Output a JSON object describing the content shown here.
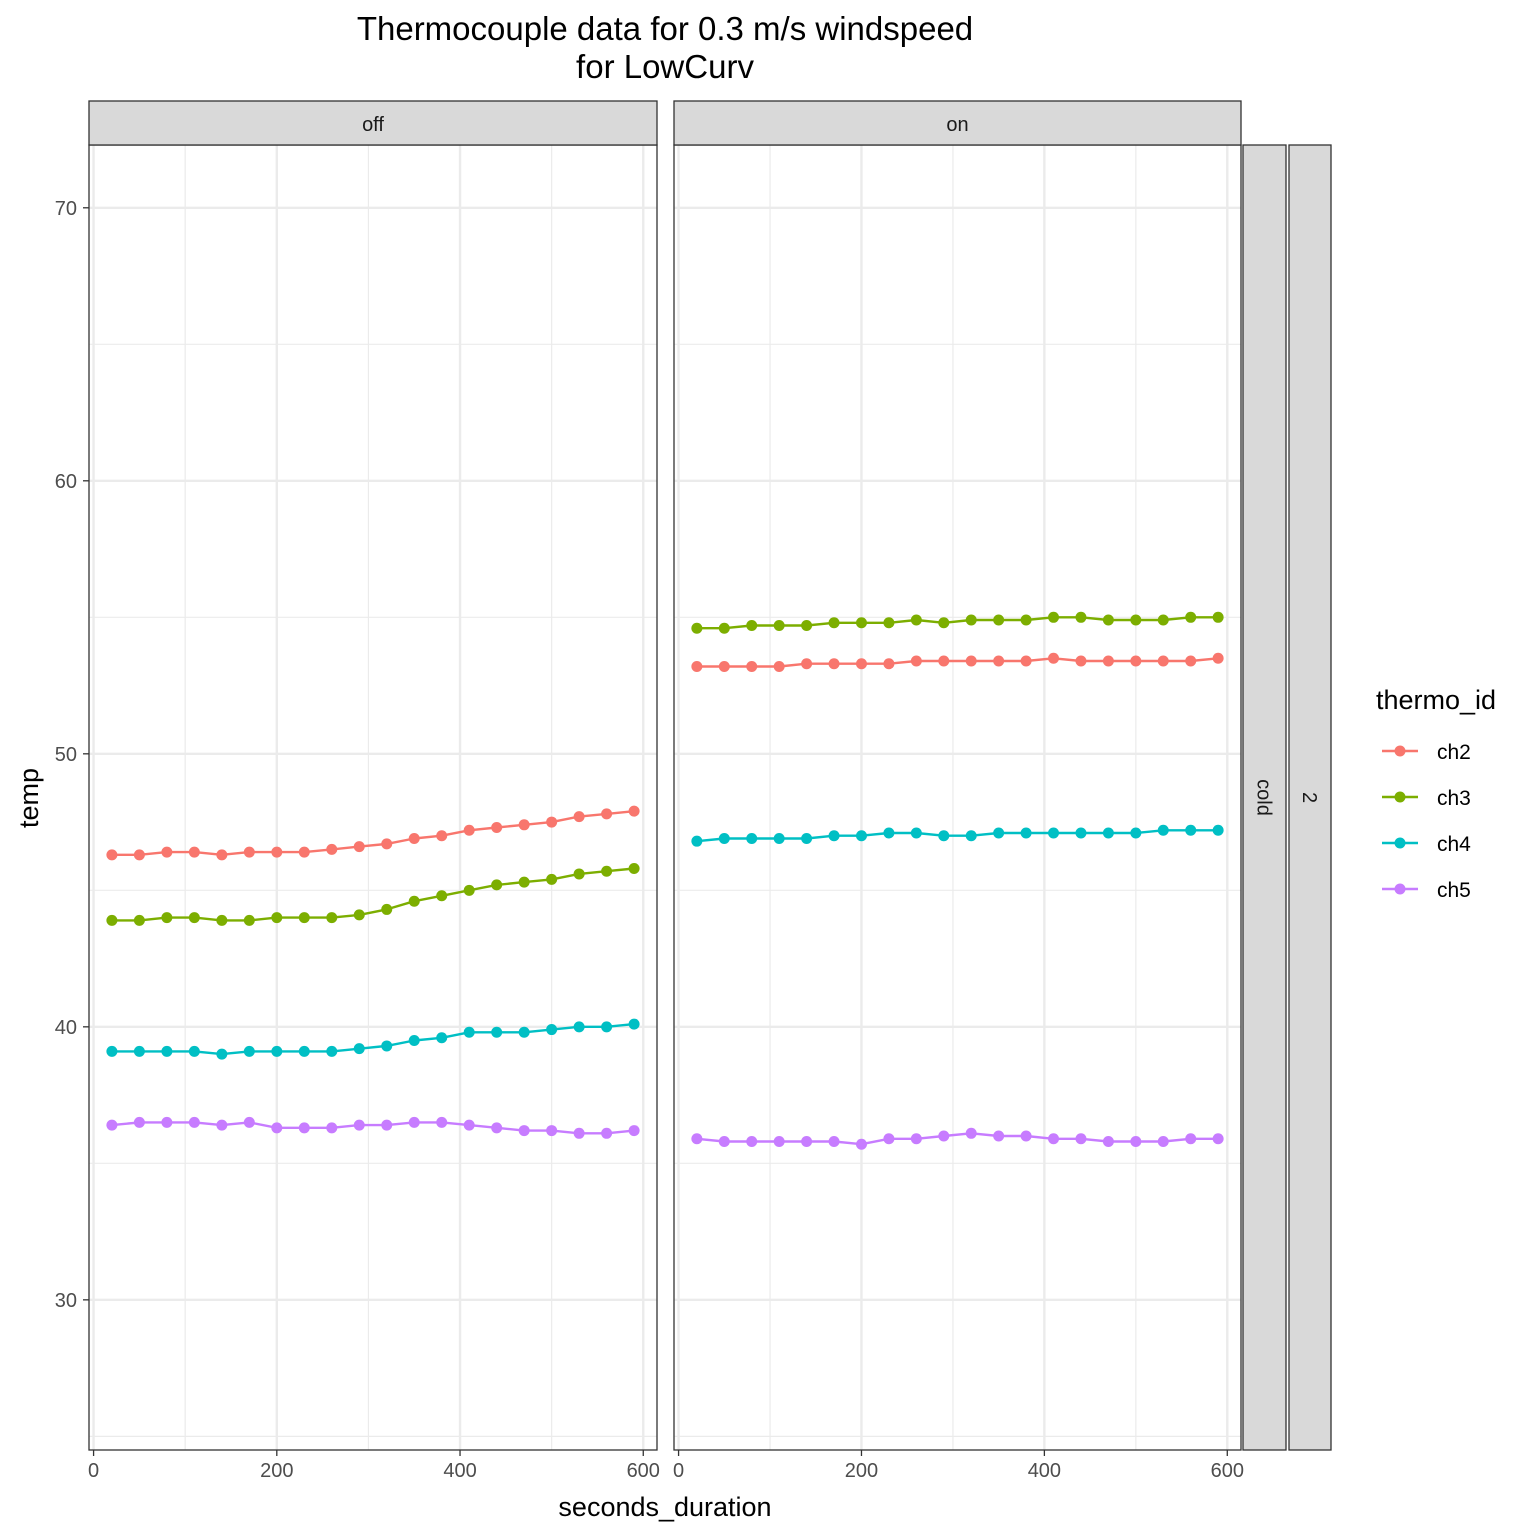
{
  "chart_data": {
    "type": "line",
    "title": "Thermocouple data for 0.3 m/s windspeed",
    "subtitle": "for LowCurv",
    "xlabel": "seconds_duration",
    "ylabel": "temp",
    "xlim": [
      -5,
      615
    ],
    "ylim": [
      24.5,
      72.3
    ],
    "x_ticks": [
      0,
      200,
      400,
      600
    ],
    "y_ticks": [
      30,
      40,
      50,
      60,
      70
    ],
    "grid": true,
    "legend": {
      "title": "thermo_id",
      "position": "right"
    },
    "x": [
      20,
      50,
      80,
      110,
      140,
      170,
      200,
      230,
      260,
      290,
      320,
      350,
      380,
      410,
      440,
      470,
      500,
      530,
      560,
      590
    ],
    "row_strips": [
      "cold",
      "2"
    ],
    "panels": [
      {
        "strip": "off",
        "series": [
          {
            "name": "ch2",
            "color": "#F8766D",
            "values": [
              46.3,
              46.3,
              46.4,
              46.4,
              46.3,
              46.4,
              46.4,
              46.4,
              46.5,
              46.6,
              46.7,
              46.9,
              47.0,
              47.2,
              47.3,
              47.4,
              47.5,
              47.7,
              47.8,
              47.9
            ]
          },
          {
            "name": "ch3",
            "color": "#7CAE00",
            "values": [
              43.9,
              43.9,
              44.0,
              44.0,
              43.9,
              43.9,
              44.0,
              44.0,
              44.0,
              44.1,
              44.3,
              44.6,
              44.8,
              45.0,
              45.2,
              45.3,
              45.4,
              45.6,
              45.7,
              45.8
            ]
          },
          {
            "name": "ch4",
            "color": "#00BFC4",
            "values": [
              39.1,
              39.1,
              39.1,
              39.1,
              39.0,
              39.1,
              39.1,
              39.1,
              39.1,
              39.2,
              39.3,
              39.5,
              39.6,
              39.8,
              39.8,
              39.8,
              39.9,
              40.0,
              40.0,
              40.1
            ]
          },
          {
            "name": "ch5",
            "color": "#C77CFF",
            "values": [
              36.4,
              36.5,
              36.5,
              36.5,
              36.4,
              36.5,
              36.3,
              36.3,
              36.3,
              36.4,
              36.4,
              36.5,
              36.5,
              36.4,
              36.3,
              36.2,
              36.2,
              36.1,
              36.1,
              36.2
            ]
          }
        ]
      },
      {
        "strip": "on",
        "series": [
          {
            "name": "ch2",
            "color": "#F8766D",
            "values": [
              53.2,
              53.2,
              53.2,
              53.2,
              53.3,
              53.3,
              53.3,
              53.3,
              53.4,
              53.4,
              53.4,
              53.4,
              53.4,
              53.5,
              53.4,
              53.4,
              53.4,
              53.4,
              53.4,
              53.5
            ]
          },
          {
            "name": "ch3",
            "color": "#7CAE00",
            "values": [
              54.6,
              54.6,
              54.7,
              54.7,
              54.7,
              54.8,
              54.8,
              54.8,
              54.9,
              54.8,
              54.9,
              54.9,
              54.9,
              55.0,
              55.0,
              54.9,
              54.9,
              54.9,
              55.0,
              55.0
            ]
          },
          {
            "name": "ch4",
            "color": "#00BFC4",
            "values": [
              46.8,
              46.9,
              46.9,
              46.9,
              46.9,
              47.0,
              47.0,
              47.1,
              47.1,
              47.0,
              47.0,
              47.1,
              47.1,
              47.1,
              47.1,
              47.1,
              47.1,
              47.2,
              47.2,
              47.2
            ]
          },
          {
            "name": "ch5",
            "color": "#C77CFF",
            "values": [
              35.9,
              35.8,
              35.8,
              35.8,
              35.8,
              35.8,
              35.7,
              35.9,
              35.9,
              36.0,
              36.1,
              36.0,
              36.0,
              35.9,
              35.9,
              35.8,
              35.8,
              35.8,
              35.9,
              35.9
            ]
          }
        ]
      }
    ]
  }
}
